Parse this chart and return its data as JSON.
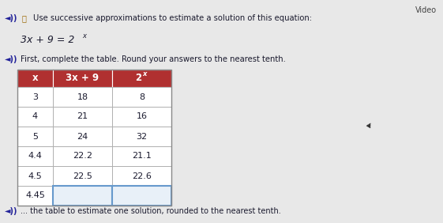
{
  "title_line1": "Use successive approximations to estimate a solution of this equation:",
  "instruction": "First, complete the table. Round your answers to the nearest tenth.",
  "footer": "the table to estimate one solution, rounded to the nearest tenth.",
  "col_headers": [
    "x",
    "3x + 9",
    "2"
  ],
  "rows": [
    [
      "3",
      "18",
      "8"
    ],
    [
      "4",
      "21",
      "16"
    ],
    [
      "5",
      "24",
      "32"
    ],
    [
      "4.4",
      "22.2",
      "21.1"
    ],
    [
      "4.5",
      "22.5",
      "22.6"
    ],
    [
      "4.45",
      "",
      ""
    ]
  ],
  "header_bg": "#b03030",
  "header_text_color": "#ffffff",
  "row_bg": "#ffffff",
  "grid_color": "#aaaaaa",
  "blank_cell_border": "#6699cc",
  "blank_cell_bg": "#e8f0f8",
  "bg_color": "#e8e8e8",
  "text_color": "#222222",
  "dark_text": "#1a1a2e",
  "video_color": "#444444",
  "speaker_color": "#222299",
  "footer_text": "the table to estimate one solution, rounded to the nearest tenth."
}
